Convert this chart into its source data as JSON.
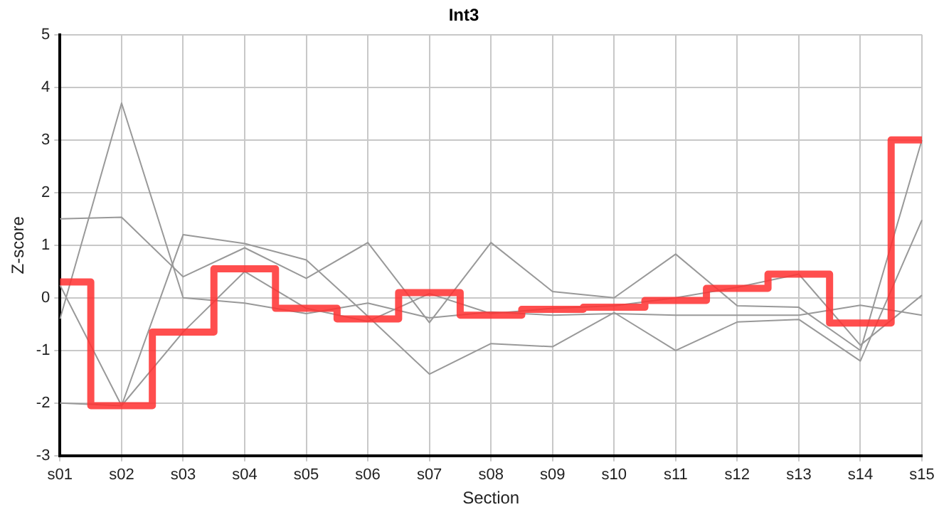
{
  "chart_data": {
    "type": "line",
    "title": "Int3",
    "xlabel": "Section",
    "ylabel": "Z-score",
    "categories": [
      "s01",
      "s02",
      "s03",
      "s04",
      "s05",
      "s06",
      "s07",
      "s08",
      "s09",
      "s10",
      "s11",
      "s12",
      "s13",
      "s14",
      "s15"
    ],
    "series": [
      {
        "type": "step",
        "color": "#ff3333",
        "values": [
          0.3,
          -2.05,
          -0.65,
          0.55,
          -0.2,
          -0.4,
          0.1,
          -0.33,
          -0.22,
          -0.18,
          -0.05,
          0.18,
          0.45,
          -0.48,
          3.0
        ]
      },
      {
        "color": "#999999",
        "values": [
          1.5,
          1.53,
          0.4,
          0.95,
          0.37,
          1.05,
          -0.47,
          1.05,
          0.12,
          0.0,
          0.83,
          -0.15,
          -0.18,
          -1.0,
          3.0
        ]
      },
      {
        "color": "#999999",
        "values": [
          -0.4,
          3.7,
          0.0,
          -0.1,
          -0.3,
          -0.1,
          -0.38,
          -0.27,
          -0.33,
          -0.3,
          -0.33,
          -0.33,
          -0.33,
          -0.14,
          -0.33
        ]
      },
      {
        "color": "#999999",
        "values": [
          -2.0,
          -2.05,
          1.2,
          1.03,
          0.72,
          -0.35,
          -1.45,
          -0.87,
          -0.93,
          -0.28,
          -1.0,
          -0.46,
          -0.41,
          -1.2,
          1.48
        ]
      },
      {
        "color": "#999999",
        "values": [
          0.24,
          -2.05,
          -0.65,
          0.5,
          -0.2,
          -0.45,
          0.08,
          -0.3,
          -0.2,
          -0.15,
          0.0,
          0.2,
          0.45,
          -0.9,
          0.05
        ]
      }
    ],
    "ylim": [
      -3,
      5
    ],
    "yticks": [
      -3,
      -2,
      -1,
      0,
      1,
      2,
      3,
      4,
      5
    ],
    "grid": true,
    "legend": false,
    "marker": "none"
  }
}
